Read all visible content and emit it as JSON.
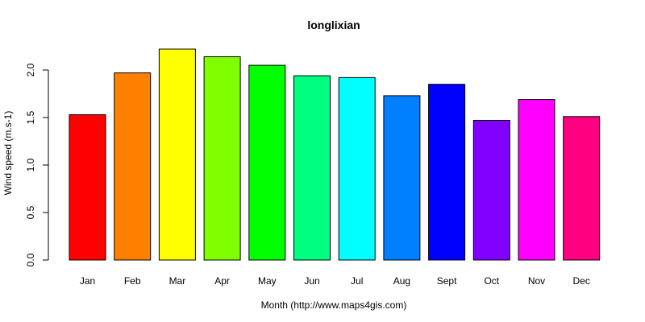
{
  "chart_data": {
    "type": "bar",
    "title": "longlixian",
    "xlabel": "Month (http://www.maps4gis.com)",
    "ylabel": "Wind speed (m.s-1)",
    "ylim": [
      0,
      2.2
    ],
    "yticks": [
      0.0,
      0.5,
      1.0,
      1.5,
      2.0
    ],
    "ytick_labels": [
      "0.0",
      "0.5",
      "1.0",
      "1.5",
      "2.0"
    ],
    "categories": [
      "Jan",
      "Feb",
      "Mar",
      "Apr",
      "May",
      "Jun",
      "Jul",
      "Aug",
      "Sept",
      "Oct",
      "Nov",
      "Dec"
    ],
    "values": [
      1.53,
      1.97,
      2.22,
      2.14,
      2.05,
      1.94,
      1.92,
      1.73,
      1.85,
      1.47,
      1.69,
      1.51
    ],
    "colors": [
      "#FF0000",
      "#FF8000",
      "#FFFF00",
      "#80FF00",
      "#00FF00",
      "#00FF80",
      "#00FFFF",
      "#0080FF",
      "#0000FF",
      "#8000FF",
      "#FF00FF",
      "#FF0080"
    ],
    "grid": false,
    "legend": "none"
  }
}
